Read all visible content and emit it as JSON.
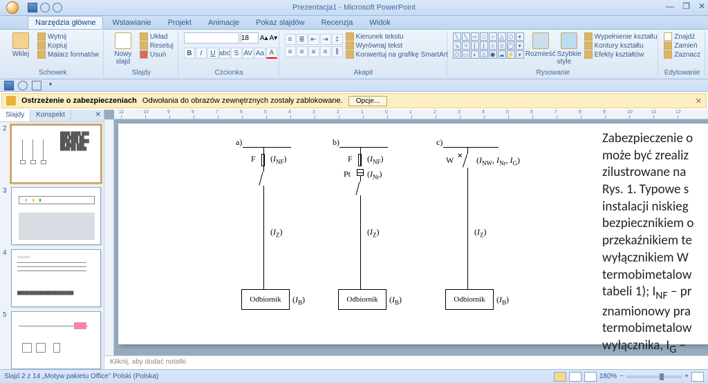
{
  "window": {
    "title": "Prezentacja1 - Microsoft PowerPoint",
    "min": "—",
    "max": "❐",
    "close": "✕",
    "max2": "✕"
  },
  "tabs": [
    "Narzędzia główne",
    "Wstawianie",
    "Projekt",
    "Animacje",
    "Pokaz slajdów",
    "Recenzja",
    "Widok"
  ],
  "active_tab": 0,
  "ribbon": {
    "clipboard": {
      "label": "Schowek",
      "paste": "Wklej",
      "cut": "Wytnij",
      "copy": "Kopiuj",
      "painter": "Malarz formatów"
    },
    "slides": {
      "label": "Slajdy",
      "new": "Nowy\nslajd",
      "layout": "Układ",
      "reset": "Resetuj",
      "delete": "Usuń"
    },
    "font": {
      "label": "Czcionka",
      "size": "18"
    },
    "paragraph": {
      "label": "Akapit",
      "dir": "Kierunek tekstu",
      "align": "Wyrównaj tekst",
      "smart": "Konwertuj na grafikę SmartArt"
    },
    "drawing": {
      "label": "Rysowanie",
      "arrange": "Rozmieść",
      "styles": "Szybkie\nstyle",
      "fill": "Wypełnienie kształtu",
      "outline": "Kontury kształtu",
      "effects": "Efekty kształtów"
    },
    "editing": {
      "label": "Edytowanie",
      "find": "Znajdź",
      "replace": "Zamień",
      "select": "Zaznacz"
    }
  },
  "security": {
    "title": "Ostrzeżenie o zabezpieczeniach",
    "msg": "Odwołania do obrazów zewnętrznych zostały zablokowane.",
    "btn": "Opcje..."
  },
  "sidetabs": {
    "slides": "Slajdy",
    "outline": "Konspekt"
  },
  "thumbs": [
    2,
    3,
    4,
    5
  ],
  "notes": "Kliknij, aby dodać notatki",
  "status": {
    "left": "Slajd 2 z 14    „Motyw pakietu Office”    Polski (Polska)",
    "zoom": "180%"
  },
  "ruler": {
    "marks": [
      -11,
      -10,
      -9,
      -8,
      -7,
      -6,
      -5,
      -4,
      -3,
      -2,
      -1,
      0,
      1,
      2,
      3,
      4,
      5,
      6,
      7,
      8,
      9,
      10,
      11,
      12
    ]
  },
  "diagram": {
    "labels": {
      "a": "a)",
      "b": "b)",
      "c": "c)",
      "F": "F",
      "Pt": "Pt",
      "W": "W",
      "odb": "Odbiornik"
    },
    "params": {
      "inf": "(I",
      "nfsub": "NF",
      "close": ")",
      "inr": "(I",
      "nrsub": "Nr",
      "iz": "(I",
      "izsub": "Z",
      "ib": "(I",
      "ibsub": "B",
      "inw": "(I",
      "nwsub": "NW",
      "sep": ", I",
      "nrsub2": "Nr",
      "sep2": ", I",
      "gsub": "G"
    },
    "colors": {
      "line": "#000000",
      "bg": "#ffffff"
    }
  },
  "text": {
    "lines": [
      "Zabezpieczenie o",
      "może być zrealiz",
      "zilustrowane na",
      "Rys. 1. Typowe s",
      "instalacji niskieg",
      "bezpiecznikiem o",
      "przekaźnikiem te",
      "wyłącznikiem W",
      "termobimetalow",
      "tabeli 1); I<sub>NF</sub> – pr",
      "znamionowy pra",
      "termobimetalow",
      "wyłącznika, I<sub>G</sub> –"
    ]
  }
}
